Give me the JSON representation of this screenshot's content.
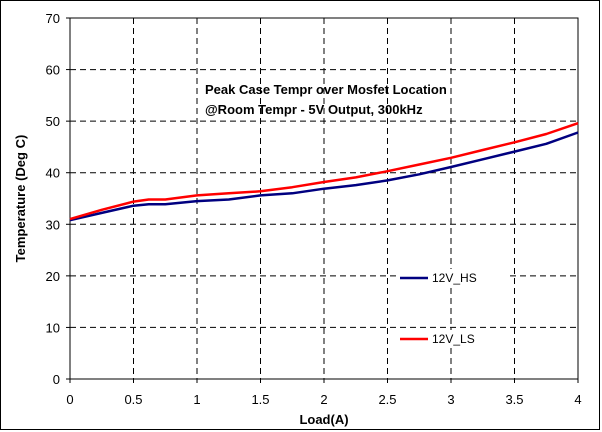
{
  "chart_data": {
    "type": "line",
    "title_lines": [
      "Peak Case Tempr over Mosfet Location",
      "@Room Tempr - 5V Output, 300kHz"
    ],
    "xlabel": "Load(A)",
    "ylabel": "Temperature (Deg C)",
    "xlim": [
      0,
      4
    ],
    "ylim": [
      0,
      70
    ],
    "xticks": [
      0,
      0.5,
      1,
      1.5,
      2,
      2.5,
      3,
      3.5,
      4
    ],
    "xtick_labels": [
      "0",
      "0.5",
      "1",
      "1.5",
      "2",
      "2.5",
      "3",
      "3.5",
      "4"
    ],
    "yticks": [
      0,
      10,
      20,
      30,
      40,
      50,
      60,
      70
    ],
    "ytick_labels": [
      "0",
      "10",
      "20",
      "30",
      "40",
      "50",
      "60",
      "70"
    ],
    "grid": true,
    "grid_style": "dashed",
    "legend_placement": "center-right",
    "series": [
      {
        "name": "12V_HS",
        "color": "#000080",
        "x": [
          0,
          0.25,
          0.5,
          0.62,
          0.75,
          1,
          1.25,
          1.5,
          1.75,
          2,
          2.25,
          2.5,
          2.75,
          3,
          3.25,
          3.5,
          3.75,
          4
        ],
        "y": [
          30.8,
          32.2,
          33.6,
          33.9,
          33.9,
          34.5,
          34.8,
          35.6,
          36.0,
          36.9,
          37.6,
          38.5,
          39.7,
          41.1,
          42.6,
          44.1,
          45.6,
          47.8
        ]
      },
      {
        "name": "12V_LS",
        "color": "#ff0000",
        "x": [
          0,
          0.25,
          0.5,
          0.62,
          0.75,
          1,
          1.25,
          1.5,
          1.75,
          2,
          2.25,
          2.5,
          2.75,
          3,
          3.25,
          3.5,
          3.75,
          4
        ],
        "y": [
          31.0,
          32.8,
          34.4,
          34.8,
          34.8,
          35.6,
          36.0,
          36.4,
          37.2,
          38.2,
          39.1,
          40.3,
          41.6,
          42.9,
          44.4,
          45.9,
          47.5,
          49.6
        ]
      }
    ]
  }
}
